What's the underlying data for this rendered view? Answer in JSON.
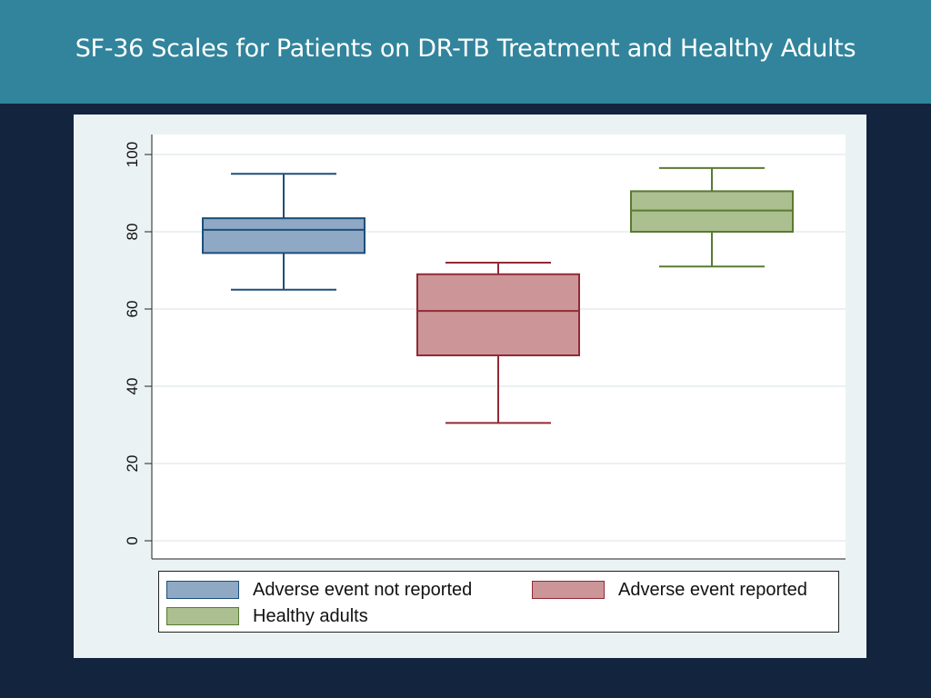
{
  "slide": {
    "title": "SF-36 Scales for Patients on DR-TB Treatment and Healthy Adults"
  },
  "colors": {
    "header_bg": "#31849b",
    "page_bg": "#13243f",
    "panel_bg": "#eaf2f3",
    "plot_bg": "#ffffff",
    "grid": "#e6ecee"
  },
  "chart_data": {
    "type": "box",
    "title": "",
    "xlabel": "",
    "ylabel": "",
    "ylim": [
      0,
      100
    ],
    "yticks": [
      0,
      20,
      40,
      60,
      80,
      100
    ],
    "grid": true,
    "legend_position": "bottom",
    "series": [
      {
        "name": "Adverse event not reported",
        "fill": "#8fa8c4",
        "stroke": "#1d4e7a",
        "whisker_low": 65,
        "q1": 74.5,
        "median": 80.5,
        "q3": 83.5,
        "whisker_high": 95
      },
      {
        "name": "Adverse event reported",
        "fill": "#cc9698",
        "stroke": "#922a35",
        "whisker_low": 30.5,
        "q1": 48,
        "median": 59.5,
        "q3": 69,
        "whisker_high": 72
      },
      {
        "name": "Healthy adults",
        "fill": "#abbf90",
        "stroke": "#5a7a32",
        "whisker_low": 71,
        "q1": 80,
        "median": 85.5,
        "q3": 90.5,
        "whisker_high": 96.5
      }
    ]
  }
}
